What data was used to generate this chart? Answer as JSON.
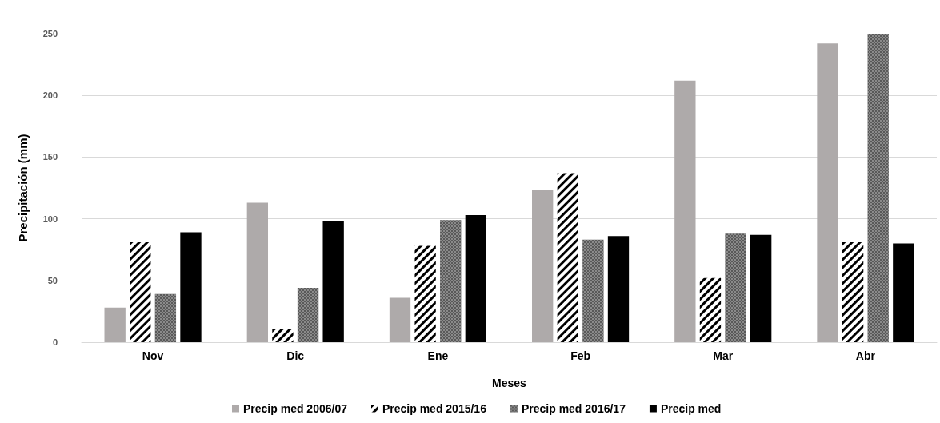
{
  "chart_data": {
    "type": "bar",
    "xlabel": "Meses",
    "ylabel": "Precipitación (mm)",
    "categories": [
      "Nov",
      "Dic",
      "Ene",
      "Feb",
      "Mar",
      "Abr"
    ],
    "series": [
      {
        "name": "Precip med 2006/07",
        "color": "#aeaaaa",
        "values": [
          28,
          113,
          36,
          123,
          212,
          242
        ]
      },
      {
        "name": "Precip med 2015/16",
        "color": "#000000",
        "values": [
          81,
          11,
          78,
          137,
          52,
          81
        ]
      },
      {
        "name": "Precip med 2016/17",
        "color": "#595959",
        "values": [
          39,
          44,
          99,
          83,
          88,
          250
        ]
      },
      {
        "name": "Precip med",
        "color": "#000000",
        "values": [
          89,
          98,
          103,
          86,
          87,
          80
        ]
      }
    ],
    "ylim": [
      0,
      250
    ],
    "yticks": [
      0,
      50,
      100,
      150,
      200,
      250
    ],
    "grid": "y",
    "legend": "bottom"
  }
}
